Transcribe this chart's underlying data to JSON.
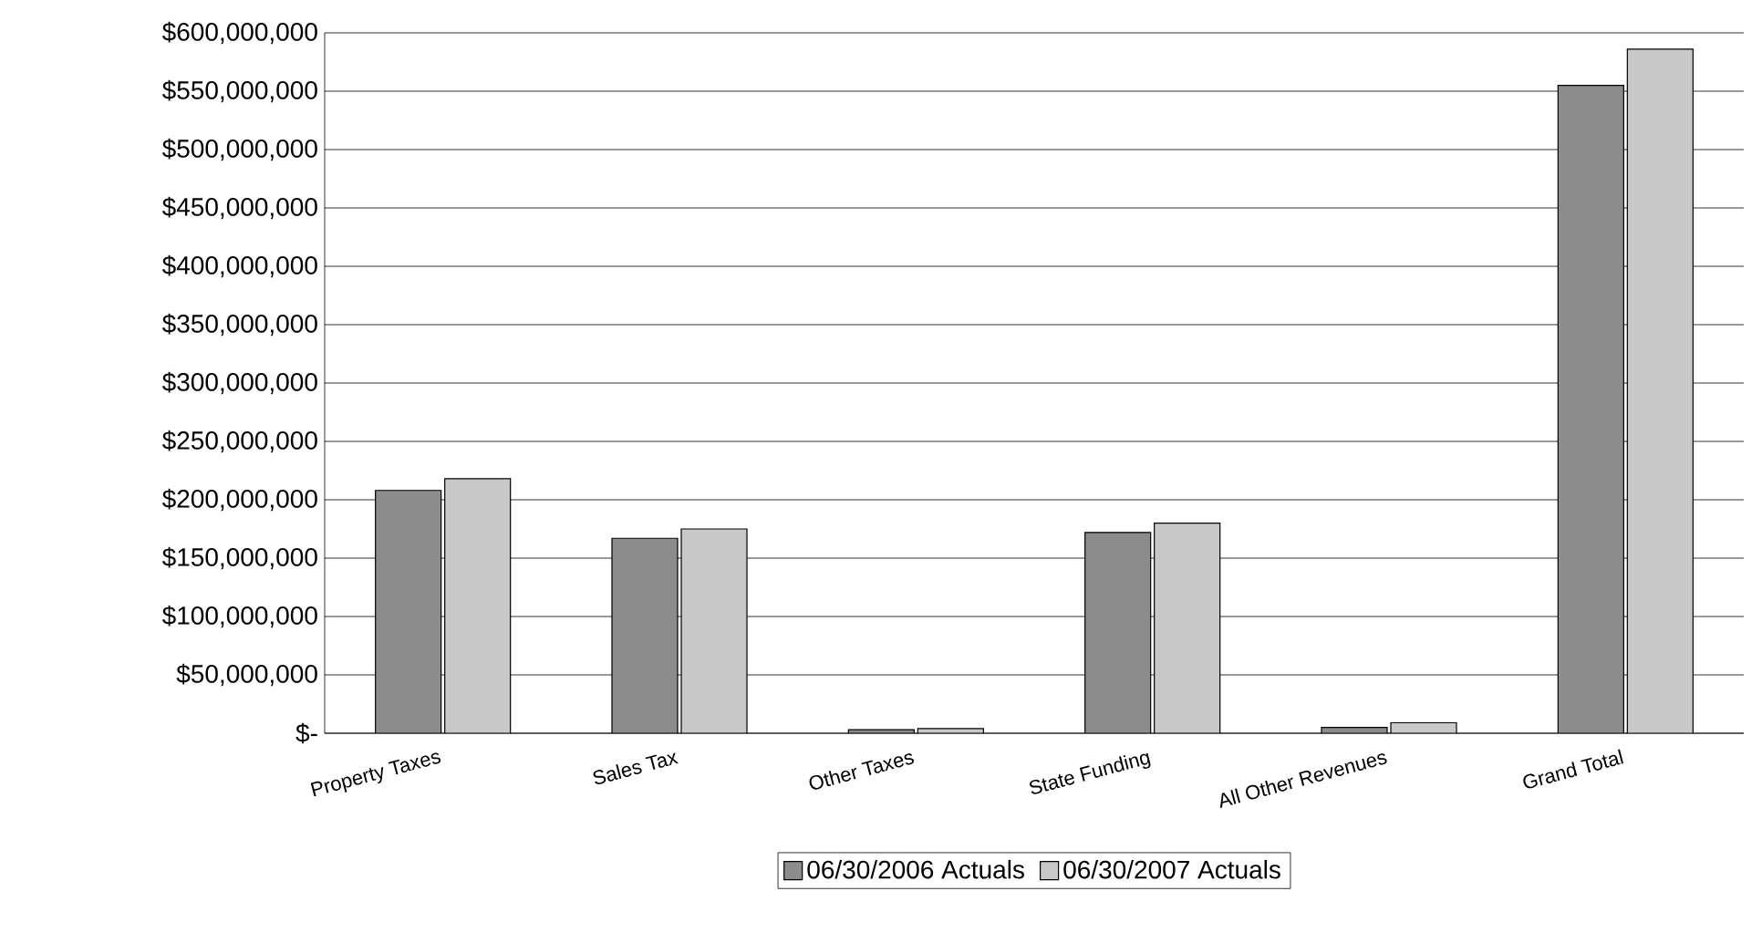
{
  "chart_data": {
    "type": "bar",
    "categories": [
      "Property Taxes",
      "Sales Tax",
      "Other Taxes",
      "State Funding",
      "All Other Revenues",
      "Grand Total"
    ],
    "series": [
      {
        "name": "06/30/2006 Actuals",
        "color": "#8c8c8c",
        "values": [
          208000000,
          167000000,
          3000000,
          172000000,
          5000000,
          555000000
        ]
      },
      {
        "name": "06/30/2007 Actuals",
        "color": "#c8c8c8",
        "values": [
          218000000,
          175000000,
          4000000,
          180000000,
          9000000,
          586000000
        ]
      }
    ],
    "ylim": [
      0,
      600000000
    ],
    "yticks": [
      {
        "value": 0,
        "label": "$-"
      },
      {
        "value": 50000000,
        "label": "$50,000,000"
      },
      {
        "value": 100000000,
        "label": "$100,000,000"
      },
      {
        "value": 150000000,
        "label": "$150,000,000"
      },
      {
        "value": 200000000,
        "label": "$200,000,000"
      },
      {
        "value": 250000000,
        "label": "$250,000,000"
      },
      {
        "value": 300000000,
        "label": "$300,000,000"
      },
      {
        "value": 350000000,
        "label": "$350,000,000"
      },
      {
        "value": 400000000,
        "label": "$400,000,000"
      },
      {
        "value": 450000000,
        "label": "$450,000,000"
      },
      {
        "value": 500000000,
        "label": "$500,000,000"
      },
      {
        "value": 550000000,
        "label": "$550,000,000"
      },
      {
        "value": 600000000,
        "label": "$600,000,000"
      }
    ],
    "grid": "y",
    "legend": "bottom"
  }
}
